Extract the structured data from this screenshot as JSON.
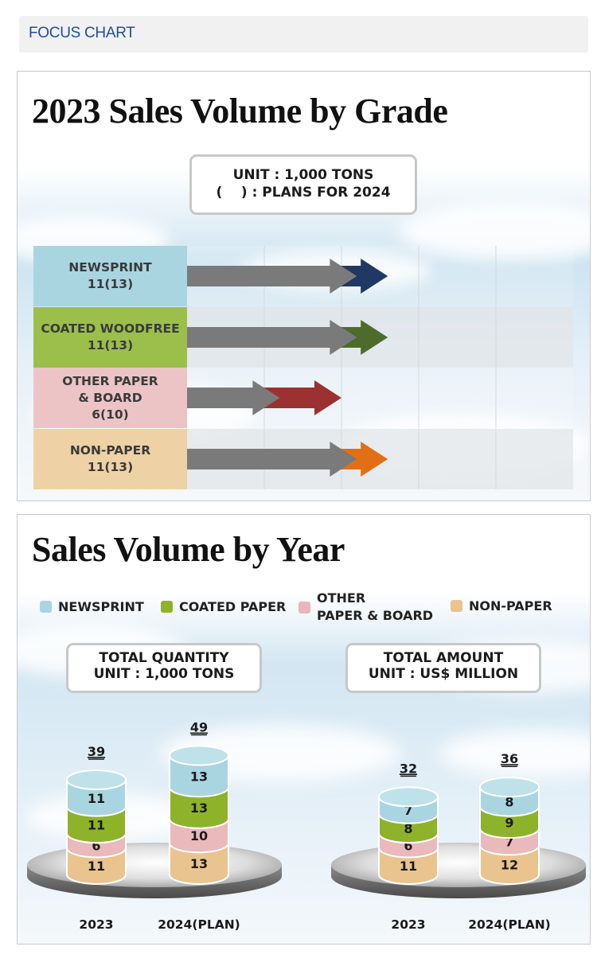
{
  "header": {
    "title": "FOCUS CHART"
  },
  "colors": {
    "newsprint": "#a9d5e1",
    "coated": "#9bbf4a",
    "other": "#ecc4c6",
    "nonpaper": "#eed2a6",
    "newsprint_arrow": "#1f3864",
    "coated_arrow": "#4e6b2c",
    "other_arrow": "#9b3131",
    "nonpaper_arrow": "#e26f16"
  },
  "chart_data": [
    {
      "type": "bar",
      "title": "2023 Sales Volume by Grade",
      "unit_note": [
        "UNIT : 1,000 TONS",
        "(    ) : PLANS FOR 2024"
      ],
      "categories": [
        "NEWSPRINT",
        "COATED WOODFREE",
        "OTHER PAPER & BOARD",
        "NON-PAPER"
      ],
      "category_labels": [
        [
          "NEWSPRINT",
          "11(13)"
        ],
        [
          "COATED WOODFREE",
          "11(13)"
        ],
        [
          "OTHER PAPER",
          "& BOARD",
          "6(10)"
        ],
        [
          "NON-PAPER",
          "11(13)"
        ]
      ],
      "series": [
        {
          "name": "2023",
          "values": [
            11,
            11,
            6,
            11
          ]
        },
        {
          "name": "2024 plan",
          "values": [
            13,
            13,
            10,
            13
          ]
        }
      ],
      "xlim": [
        0,
        25
      ]
    },
    {
      "type": "bar",
      "title": "Sales Volume by Year",
      "legend": [
        "NEWSPRINT",
        "COATED PAPER",
        "OTHER PAPER & BOARD",
        "NON-PAPER"
      ],
      "legend_lines": [
        [
          "NEWSPRINT"
        ],
        [
          "COATED PAPER"
        ],
        [
          "OTHER",
          "PAPER & BOARD"
        ],
        [
          "NON-PAPER"
        ]
      ],
      "stacked": true,
      "groups": [
        {
          "label": [
            "TOTAL QUANTITY",
            "UNIT : 1,000 TONS"
          ],
          "categories": [
            "2023",
            "2024(PLAN)"
          ],
          "totals": [
            39,
            49
          ],
          "series": [
            {
              "name": "NON-PAPER",
              "values": [
                11,
                13
              ]
            },
            {
              "name": "OTHER PAPER & BOARD",
              "values": [
                6,
                10
              ]
            },
            {
              "name": "COATED PAPER",
              "values": [
                11,
                13
              ]
            },
            {
              "name": "NEWSPRINT",
              "values": [
                11,
                13
              ]
            }
          ]
        },
        {
          "label": [
            "TOTAL AMOUNT",
            "UNIT : US$ MILLION"
          ],
          "categories": [
            "2023",
            "2024(PLAN)"
          ],
          "totals": [
            32,
            36
          ],
          "series": [
            {
              "name": "NON-PAPER",
              "values": [
                11,
                12
              ]
            },
            {
              "name": "OTHER PAPER & BOARD",
              "values": [
                6,
                7
              ]
            },
            {
              "name": "COATED PAPER",
              "values": [
                8,
                9
              ]
            },
            {
              "name": "NEWSPRINT",
              "values": [
                7,
                8
              ]
            }
          ]
        }
      ]
    }
  ]
}
